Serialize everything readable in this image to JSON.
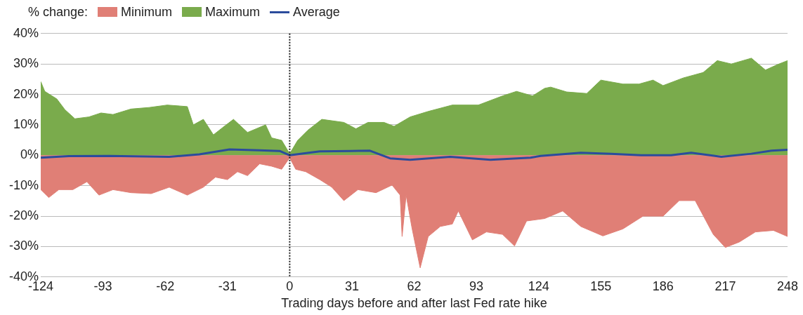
{
  "chart_data": {
    "type": "area",
    "legend_title": "% change:",
    "xlabel": "Trading days before and after last Fed rate hike",
    "xlim": [
      -124,
      248
    ],
    "xticks": [
      -124,
      -93,
      -62,
      -31,
      0,
      31,
      62,
      93,
      124,
      155,
      186,
      217,
      248
    ],
    "ylim": [
      -40,
      40
    ],
    "yticks": [
      {
        "value": 40,
        "label": "40%"
      },
      {
        "value": 30,
        "label": "30%"
      },
      {
        "value": 20,
        "label": "20%"
      },
      {
        "value": 10,
        "label": "10%"
      },
      {
        "value": 0,
        "label": "0%"
      },
      {
        "value": -10,
        "label": "-10%"
      },
      {
        "value": -20,
        "label": "-20%"
      },
      {
        "value": -30,
        "label": "-30%"
      },
      {
        "value": -40,
        "label": "-40%"
      }
    ],
    "grid": "y",
    "legend": "top left",
    "ref_lines": [
      {
        "axis": "x",
        "value": 0,
        "color": "#222222",
        "line_style": "dotted"
      }
    ],
    "series": [
      {
        "name": "Minimum",
        "color": "#e07f76",
        "x": [
          -124,
          -120,
          -115,
          -108,
          -101,
          -95,
          -88,
          -79,
          -69,
          -60,
          -51,
          -43,
          -37,
          -31,
          -26,
          -21,
          -15,
          -9,
          -4,
          0,
          3,
          8,
          15,
          21,
          27,
          34,
          43,
          51,
          55,
          56,
          58,
          61,
          65,
          69,
          75,
          81,
          84,
          91,
          98,
          106,
          112,
          118,
          127,
          136,
          145,
          156,
          166,
          176,
          186,
          194,
          202,
          211,
          217,
          224,
          232,
          241,
          248
        ],
        "values": [
          -11.3,
          -13.9,
          -11.3,
          -11.3,
          -8.7,
          -13.1,
          -11.3,
          -12.3,
          -12.6,
          -10.5,
          -13.1,
          -10.5,
          -7.2,
          -8,
          -5.4,
          -6.7,
          -2.8,
          -3.6,
          -4.6,
          -0.8,
          -4.6,
          -5.4,
          -8,
          -10.5,
          -14.9,
          -11.3,
          -12.3,
          -9.8,
          -13.1,
          -26.7,
          -13.1,
          -24.2,
          -37,
          -26.7,
          -23.4,
          -22.6,
          -18.3,
          -27.8,
          -25.2,
          -26,
          -29.8,
          -21.6,
          -20.8,
          -18.3,
          -23.4,
          -26.5,
          -24.2,
          -20,
          -20,
          -14.9,
          -14.9,
          -26,
          -30.3,
          -28.5,
          -25.2,
          -24.7,
          -26.7
        ]
      },
      {
        "name": "Maximum",
        "color": "#7aab4c",
        "x": [
          -124,
          -122,
          -116,
          -112,
          -107,
          -100,
          -94,
          -88,
          -79,
          -70,
          -61,
          -51,
          -48,
          -43,
          -38,
          -33,
          -28,
          -21,
          -12,
          -9,
          -4,
          0,
          4,
          9,
          16,
          27,
          33,
          39,
          47,
          52,
          60,
          69,
          81,
          94,
          106,
          113,
          121,
          127,
          130,
          138,
          148,
          155,
          166,
          174,
          181,
          186,
          196,
          206,
          213,
          220,
          230,
          237,
          243,
          248
        ],
        "values": [
          24.2,
          21,
          18.5,
          15,
          12,
          12.6,
          13.9,
          13.4,
          15.2,
          15.7,
          16.5,
          16,
          10,
          11.8,
          6.7,
          9.3,
          11.8,
          7.5,
          10,
          5.7,
          4.9,
          0.5,
          4.9,
          8.2,
          11.8,
          10.8,
          8.7,
          10.8,
          10.8,
          9.5,
          12.6,
          14.4,
          16.5,
          16.5,
          19.5,
          21,
          19.5,
          22,
          22.4,
          20.8,
          20.3,
          24.7,
          23.4,
          23.4,
          24.7,
          22.9,
          25.4,
          27.2,
          31.1,
          30,
          31.9,
          28,
          29.8,
          31.1
        ]
      },
      {
        "name": "Average",
        "type": "line",
        "color": "#2b4c9c",
        "x": [
          -124,
          -110,
          -90,
          -60,
          -45,
          -30,
          -15,
          -5,
          0,
          15,
          30,
          40,
          50,
          60,
          80,
          100,
          120,
          125,
          145,
          160,
          175,
          190,
          200,
          215,
          230,
          240,
          248
        ],
        "values": [
          -0.8,
          -0.3,
          -0.2,
          -0.5,
          0.3,
          1.9,
          1.6,
          1.4,
          0,
          1.3,
          1.4,
          1.5,
          -1,
          -1.5,
          -0.5,
          -1.5,
          -0.8,
          -0.2,
          0.8,
          0.5,
          0,
          0,
          0.8,
          -0.5,
          0.5,
          1.5,
          1.8
        ]
      }
    ]
  }
}
